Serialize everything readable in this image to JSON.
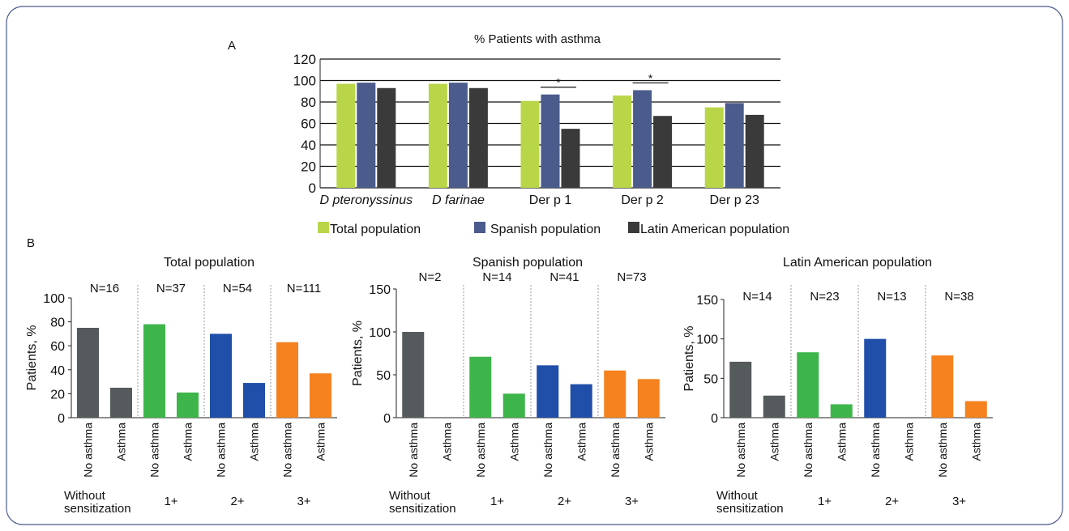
{
  "panel_a": {
    "letter": "A",
    "chart_data": {
      "type": "bar",
      "title": "% Patients with asthma",
      "categories": [
        "D pteronyssinus",
        "D farinae",
        "Der p 1",
        "Der p 2",
        "Der p 23"
      ],
      "italic_categories": [
        true,
        true,
        false,
        false,
        false
      ],
      "series": [
        {
          "name": "Total population",
          "color": "#b9d648",
          "values": [
            97,
            97,
            81,
            86,
            75
          ]
        },
        {
          "name": "Spanish population",
          "color": "#4a5b8c",
          "values": [
            98,
            98,
            87,
            91,
            79
          ]
        },
        {
          "name": "Latin American population",
          "color": "#3a3a3a",
          "values": [
            93,
            93,
            55,
            67,
            68
          ]
        }
      ],
      "ylim": [
        0,
        120
      ],
      "yticks": [
        0,
        20,
        40,
        60,
        80,
        100,
        120
      ],
      "grid": true,
      "annotations": [
        {
          "text": "*",
          "category": "Der p 1",
          "from_series": 1,
          "to_series": 2
        },
        {
          "text": "*",
          "category": "Der p 2",
          "from_series": 1,
          "to_series": 2
        }
      ],
      "legend_placement": "bottom"
    }
  },
  "panel_b": {
    "letter": "B",
    "charts": [
      {
        "type": "bar",
        "title": "Total population",
        "ylabel": "Patients, %",
        "ylim": [
          0,
          100
        ],
        "yticks": [
          0,
          20,
          40,
          60,
          80,
          100
        ],
        "groups": [
          {
            "label": "Without sensitization",
            "label_lines": [
              "Without",
              "sensitization"
            ],
            "n": "N=16",
            "color": "#555a5c",
            "values": [
              75,
              25
            ]
          },
          {
            "label": "1+",
            "label_lines": [
              "1+"
            ],
            "n": "N=37",
            "color": "#3db54a",
            "values": [
              78,
              21
            ]
          },
          {
            "label": "2+",
            "label_lines": [
              "2+"
            ],
            "n": "N=54",
            "color": "#1f4fa8",
            "values": [
              70,
              29
            ]
          },
          {
            "label": "3+",
            "label_lines": [
              "3+"
            ],
            "n": "N=111",
            "color": "#f5821f",
            "values": [
              63,
              37
            ]
          }
        ],
        "bar_labels": [
          "No asthma",
          "Asthma"
        ]
      },
      {
        "type": "bar",
        "title": "Spanish population",
        "ylabel": "Patients, %",
        "ylim": [
          0,
          150
        ],
        "yticks": [
          0,
          50,
          100,
          150
        ],
        "groups": [
          {
            "label": "Without sensitization",
            "label_lines": [
              "Without",
              "sensitization"
            ],
            "n": "N=2",
            "color": "#555a5c",
            "values": [
              100,
              0
            ]
          },
          {
            "label": "1+",
            "label_lines": [
              "1+"
            ],
            "n": "N=14",
            "color": "#3db54a",
            "values": [
              71,
              28
            ]
          },
          {
            "label": "2+",
            "label_lines": [
              "2+"
            ],
            "n": "N=41",
            "color": "#1f4fa8",
            "values": [
              61,
              39
            ]
          },
          {
            "label": "3+",
            "label_lines": [
              "3+"
            ],
            "n": "N=73",
            "color": "#f5821f",
            "values": [
              55,
              45
            ]
          }
        ],
        "bar_labels": [
          "No asthma",
          "Asthma"
        ]
      },
      {
        "type": "bar",
        "title": "Latin American population",
        "ylabel": "Patients, %",
        "ylim": [
          0,
          150
        ],
        "yticks": [
          0,
          50,
          100,
          150
        ],
        "groups": [
          {
            "label": "Without sensitization",
            "label_lines": [
              "Without",
              "sensitization"
            ],
            "n": "N=14",
            "color": "#555a5c",
            "values": [
              71,
              28
            ]
          },
          {
            "label": "1+",
            "label_lines": [
              "1+"
            ],
            "n": "N=23",
            "color": "#3db54a",
            "values": [
              83,
              17
            ]
          },
          {
            "label": "2+",
            "label_lines": [
              "2+"
            ],
            "n": "N=13",
            "color": "#1f4fa8",
            "values": [
              100,
              0
            ]
          },
          {
            "label": "3+",
            "label_lines": [
              "3+"
            ],
            "n": "N=38",
            "color": "#f5821f",
            "values": [
              79,
              21
            ]
          }
        ],
        "bar_labels": [
          "No asthma",
          "Asthma"
        ]
      }
    ]
  },
  "colors": {
    "frame_border": "#4a5b8c"
  }
}
